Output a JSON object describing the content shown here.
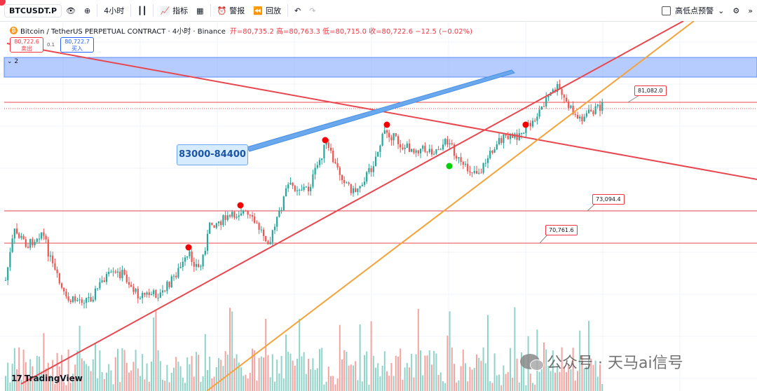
{
  "toolbar": {
    "symbol": "BTCUSDT.P",
    "interval": "4小时",
    "indicators_label": "指标",
    "alert_label": "警报",
    "replay_label": "回放",
    "right_option_label": "高低点预警"
  },
  "legend": {
    "icon": "₿",
    "title": "Bitcoin / TetherUS PERPETUAL CONTRACT · 4小时 · Binance",
    "ohlc": "开=80,735.2 高=80,763.3 低=80,715.0 收=80,722.6 −12.5 (−0.02%)"
  },
  "trade": {
    "sell_price": "80,722.6",
    "sell_label": "卖出",
    "spread": "0.1",
    "buy_price": "80,722.7",
    "buy_label": "买入"
  },
  "group_label": "2",
  "annotation": "83000-84400",
  "price_tags": {
    "top": "81,082.0",
    "mid": "73,094.4",
    "low": "70,761.6"
  },
  "branding": {
    "tv_logo": "TradingView",
    "watermark": "公众号 · 天马ai信号"
  },
  "colors": {
    "up": "#26a69a",
    "down": "#ef5350",
    "line_red": "#e8474f",
    "line_orange": "#f4a33a",
    "zone_blue": "#8fb1ff"
  }
}
